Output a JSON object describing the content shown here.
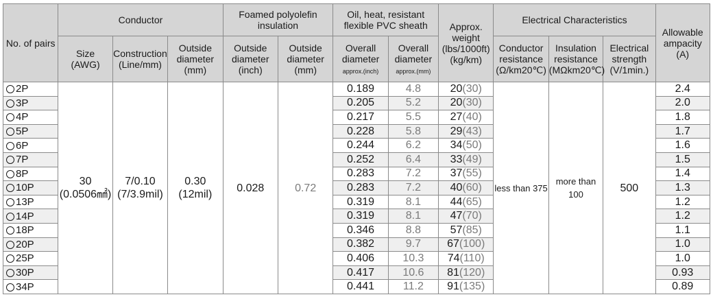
{
  "header": {
    "no_of_pairs": "No. of pairs",
    "conductor": "Conductor",
    "foamed": "Foamed polyolefin insulation",
    "sheath": "Oil, heat, resistant flexible PVC sheath",
    "weight": "Approx. weight (lbs/1000ft) (kg/km)",
    "electrical": "Electrical Characteristics",
    "ampacity": "Allowable ampacity (A)",
    "size": "Size",
    "size_unit": "(AWG)",
    "construction": "Construction",
    "construction_unit": "(Line/mm)",
    "cond_od": "Outside diameter",
    "cond_od_unit": "(mm)",
    "ins_od_inch": "Outside diameter",
    "ins_od_inch_unit": "(inch)",
    "ins_od_mm": "Outside diameter",
    "ins_od_mm_unit": "(mm)",
    "overall_inch": "Overall diameter",
    "overall_inch_unit": "approx.(inch)",
    "overall_mm": "Overall diameter",
    "overall_mm_unit": "approx.(mm)",
    "cond_res": "Conductor resistance",
    "cond_res_unit": "(Ω/km20℃)",
    "ins_res": "Insulation resistance",
    "ins_res_unit": "(MΩkm20℃)",
    "strength": "Electrical strength",
    "strength_unit": "(V/1min.)"
  },
  "common": {
    "size": "30",
    "size_area": "(0.0506㎟)",
    "construction": "7/0.10",
    "construction_mil": "(7/3.9mil)",
    "cond_od": "0.30",
    "cond_od_mil": "(12mil)",
    "ins_od_inch": "0.028",
    "ins_od_mm": "0.72",
    "cond_res": "less than 375",
    "ins_res": "more than 100",
    "strength": "500"
  },
  "rows": [
    {
      "pairs": "2P",
      "od_inch": "0.189",
      "od_mm": "4.8",
      "lbs": "20",
      "kg": "(30)",
      "amp": "2.4"
    },
    {
      "pairs": "3P",
      "od_inch": "0.205",
      "od_mm": "5.2",
      "lbs": "20",
      "kg": "(30)",
      "amp": "2.0"
    },
    {
      "pairs": "4P",
      "od_inch": "0.217",
      "od_mm": "5.5",
      "lbs": "27",
      "kg": "(40)",
      "amp": "1.8"
    },
    {
      "pairs": "5P",
      "od_inch": "0.228",
      "od_mm": "5.8",
      "lbs": "29",
      "kg": "(43)",
      "amp": "1.7"
    },
    {
      "pairs": "6P",
      "od_inch": "0.244",
      "od_mm": "6.2",
      "lbs": "34",
      "kg": "(50)",
      "amp": "1.6"
    },
    {
      "pairs": "7P",
      "od_inch": "0.252",
      "od_mm": "6.4",
      "lbs": "33",
      "kg": "(49)",
      "amp": "1.5"
    },
    {
      "pairs": "8P",
      "od_inch": "0.283",
      "od_mm": "7.2",
      "lbs": "37",
      "kg": "(55)",
      "amp": "1.4"
    },
    {
      "pairs": "10P",
      "od_inch": "0.283",
      "od_mm": "7.2",
      "lbs": "40",
      "kg": "(60)",
      "amp": "1.3"
    },
    {
      "pairs": "13P",
      "od_inch": "0.319",
      "od_mm": "8.1",
      "lbs": "44",
      "kg": "(65)",
      "amp": "1.2"
    },
    {
      "pairs": "14P",
      "od_inch": "0.319",
      "od_mm": "8.1",
      "lbs": "47",
      "kg": "(70)",
      "amp": "1.2"
    },
    {
      "pairs": "18P",
      "od_inch": "0.346",
      "od_mm": "8.8",
      "lbs": "57",
      "kg": "(85)",
      "amp": "1.1"
    },
    {
      "pairs": "20P",
      "od_inch": "0.382",
      "od_mm": "9.7",
      "lbs": "67",
      "kg": "(100)",
      "amp": "1.0"
    },
    {
      "pairs": "25P",
      "od_inch": "0.406",
      "od_mm": "10.3",
      "lbs": "74",
      "kg": "(110)",
      "amp": "1.0"
    },
    {
      "pairs": "30P",
      "od_inch": "0.417",
      "od_mm": "10.6",
      "lbs": "81",
      "kg": "(120)",
      "amp": "0.93"
    },
    {
      "pairs": "34P",
      "od_inch": "0.441",
      "od_mm": "11.2",
      "lbs": "91",
      "kg": "(135)",
      "amp": "0.89"
    }
  ]
}
